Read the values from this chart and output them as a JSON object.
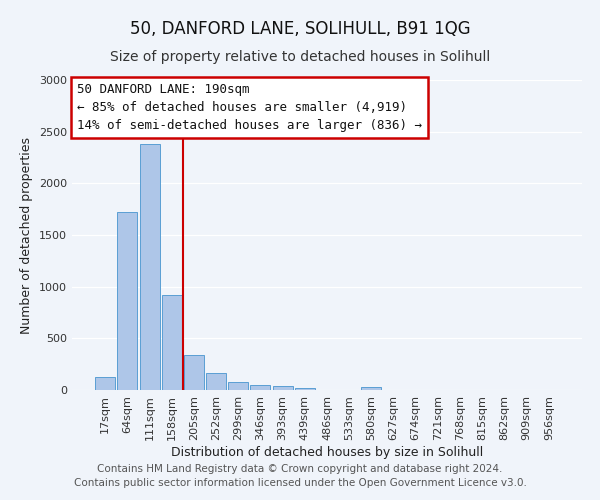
{
  "title": "50, DANFORD LANE, SOLIHULL, B91 1QG",
  "subtitle": "Size of property relative to detached houses in Solihull",
  "xlabel": "Distribution of detached houses by size in Solihull",
  "ylabel": "Number of detached properties",
  "categories": [
    "17sqm",
    "64sqm",
    "111sqm",
    "158sqm",
    "205sqm",
    "252sqm",
    "299sqm",
    "346sqm",
    "393sqm",
    "439sqm",
    "486sqm",
    "533sqm",
    "580sqm",
    "627sqm",
    "674sqm",
    "721sqm",
    "768sqm",
    "815sqm",
    "862sqm",
    "909sqm",
    "956sqm"
  ],
  "values": [
    130,
    1720,
    2380,
    920,
    340,
    165,
    75,
    50,
    40,
    20,
    0,
    0,
    30,
    0,
    0,
    0,
    0,
    0,
    0,
    0,
    0
  ],
  "bar_color": "#aec6e8",
  "bar_edge_color": "#5a9fd4",
  "vline_color": "#cc0000",
  "vline_position": 3.5,
  "ylim": [
    0,
    3000
  ],
  "yticks": [
    0,
    500,
    1000,
    1500,
    2000,
    2500,
    3000
  ],
  "annotation_box_text_line1": "50 DANFORD LANE: 190sqm",
  "annotation_box_text_line2": "← 85% of detached houses are smaller (4,919)",
  "annotation_box_text_line3": "14% of semi-detached houses are larger (836) →",
  "annotation_box_edge_color": "#cc0000",
  "footer_line1": "Contains HM Land Registry data © Crown copyright and database right 2024.",
  "footer_line2": "Contains public sector information licensed under the Open Government Licence v3.0.",
  "bg_color": "#f0f4fa",
  "grid_color": "#ffffff",
  "title_fontsize": 12,
  "subtitle_fontsize": 10,
  "axis_label_fontsize": 9,
  "tick_fontsize": 8,
  "footer_fontsize": 7.5,
  "ann_fontsize": 9
}
